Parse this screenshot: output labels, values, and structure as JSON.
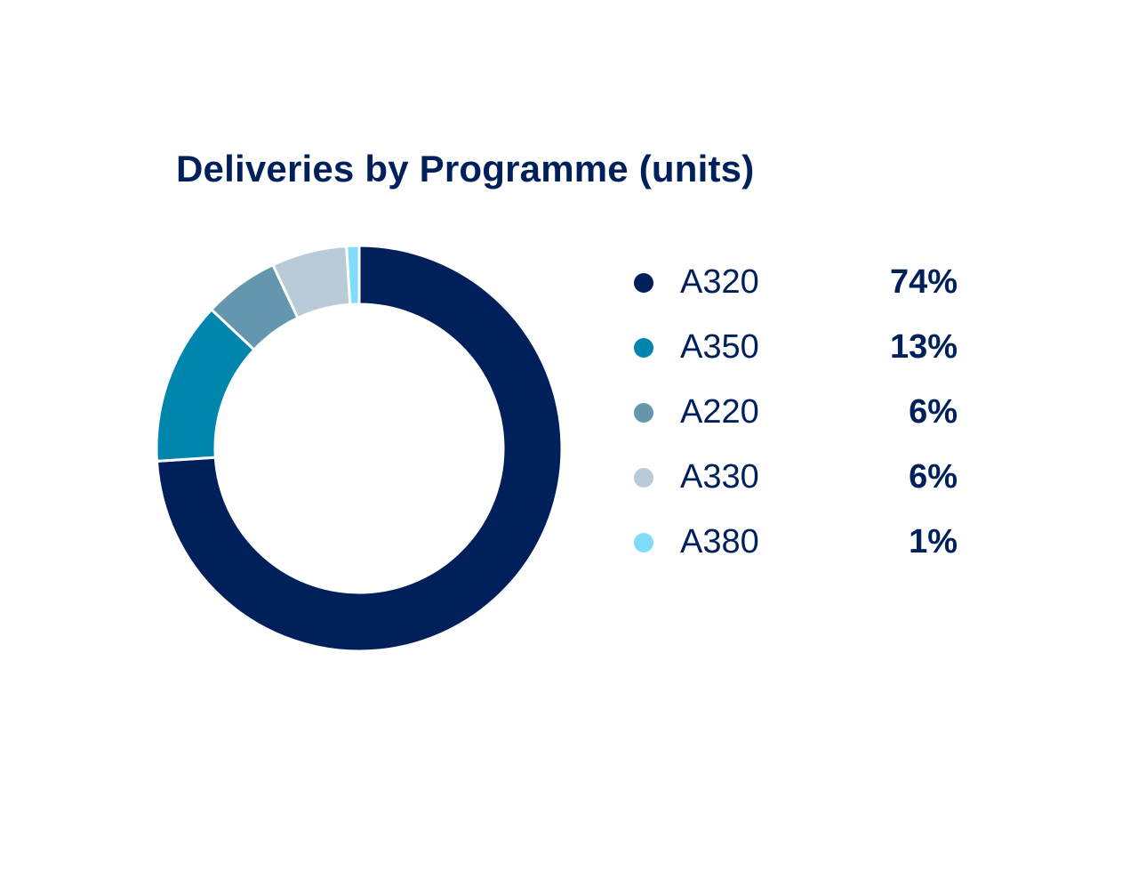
{
  "chart_data": {
    "type": "pie",
    "variant": "donut",
    "title": "Deliveries by Programme (units)",
    "categories": [
      "A320",
      "A350",
      "A220",
      "A330",
      "A380"
    ],
    "values": [
      74,
      13,
      6,
      6,
      1
    ],
    "value_labels": [
      "74%",
      "13%",
      "6%",
      "6%",
      "1%"
    ],
    "unit": "%",
    "colors": [
      "#00205b",
      "#0085ad",
      "#6497ad",
      "#b9cbd7",
      "#7fdcfa"
    ],
    "legend_position": "right"
  }
}
